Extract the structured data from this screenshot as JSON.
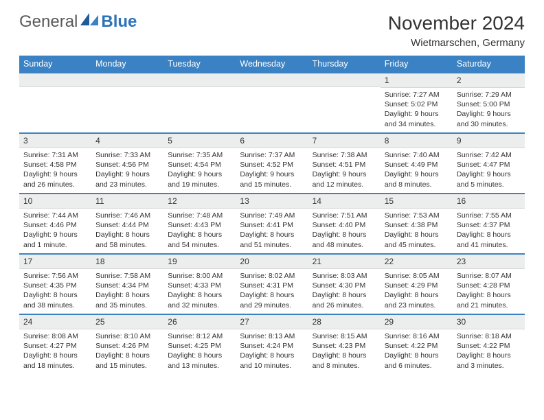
{
  "brand": {
    "part1": "General",
    "part2": "Blue"
  },
  "title": "November 2024",
  "location": "Wietmarschen, Germany",
  "colors": {
    "header_bg": "#3b82c4",
    "header_fg": "#ffffff",
    "row_border": "#3b82c4",
    "daynum_bg": "#eceded",
    "text": "#333333",
    "page_bg": "#ffffff"
  },
  "typography": {
    "body_font": "Arial, Helvetica, sans-serif",
    "month_title_size_pt": 21,
    "location_size_pt": 11,
    "dayheader_size_pt": 9.5,
    "cell_text_size_pt": 8
  },
  "day_headers": [
    "Sunday",
    "Monday",
    "Tuesday",
    "Wednesday",
    "Thursday",
    "Friday",
    "Saturday"
  ],
  "weeks": [
    [
      {
        "n": "",
        "sr": "",
        "ss": "",
        "dl": ""
      },
      {
        "n": "",
        "sr": "",
        "ss": "",
        "dl": ""
      },
      {
        "n": "",
        "sr": "",
        "ss": "",
        "dl": ""
      },
      {
        "n": "",
        "sr": "",
        "ss": "",
        "dl": ""
      },
      {
        "n": "",
        "sr": "",
        "ss": "",
        "dl": ""
      },
      {
        "n": "1",
        "sr": "Sunrise: 7:27 AM",
        "ss": "Sunset: 5:02 PM",
        "dl": "Daylight: 9 hours and 34 minutes."
      },
      {
        "n": "2",
        "sr": "Sunrise: 7:29 AM",
        "ss": "Sunset: 5:00 PM",
        "dl": "Daylight: 9 hours and 30 minutes."
      }
    ],
    [
      {
        "n": "3",
        "sr": "Sunrise: 7:31 AM",
        "ss": "Sunset: 4:58 PM",
        "dl": "Daylight: 9 hours and 26 minutes."
      },
      {
        "n": "4",
        "sr": "Sunrise: 7:33 AM",
        "ss": "Sunset: 4:56 PM",
        "dl": "Daylight: 9 hours and 23 minutes."
      },
      {
        "n": "5",
        "sr": "Sunrise: 7:35 AM",
        "ss": "Sunset: 4:54 PM",
        "dl": "Daylight: 9 hours and 19 minutes."
      },
      {
        "n": "6",
        "sr": "Sunrise: 7:37 AM",
        "ss": "Sunset: 4:52 PM",
        "dl": "Daylight: 9 hours and 15 minutes."
      },
      {
        "n": "7",
        "sr": "Sunrise: 7:38 AM",
        "ss": "Sunset: 4:51 PM",
        "dl": "Daylight: 9 hours and 12 minutes."
      },
      {
        "n": "8",
        "sr": "Sunrise: 7:40 AM",
        "ss": "Sunset: 4:49 PM",
        "dl": "Daylight: 9 hours and 8 minutes."
      },
      {
        "n": "9",
        "sr": "Sunrise: 7:42 AM",
        "ss": "Sunset: 4:47 PM",
        "dl": "Daylight: 9 hours and 5 minutes."
      }
    ],
    [
      {
        "n": "10",
        "sr": "Sunrise: 7:44 AM",
        "ss": "Sunset: 4:46 PM",
        "dl": "Daylight: 9 hours and 1 minute."
      },
      {
        "n": "11",
        "sr": "Sunrise: 7:46 AM",
        "ss": "Sunset: 4:44 PM",
        "dl": "Daylight: 8 hours and 58 minutes."
      },
      {
        "n": "12",
        "sr": "Sunrise: 7:48 AM",
        "ss": "Sunset: 4:43 PM",
        "dl": "Daylight: 8 hours and 54 minutes."
      },
      {
        "n": "13",
        "sr": "Sunrise: 7:49 AM",
        "ss": "Sunset: 4:41 PM",
        "dl": "Daylight: 8 hours and 51 minutes."
      },
      {
        "n": "14",
        "sr": "Sunrise: 7:51 AM",
        "ss": "Sunset: 4:40 PM",
        "dl": "Daylight: 8 hours and 48 minutes."
      },
      {
        "n": "15",
        "sr": "Sunrise: 7:53 AM",
        "ss": "Sunset: 4:38 PM",
        "dl": "Daylight: 8 hours and 45 minutes."
      },
      {
        "n": "16",
        "sr": "Sunrise: 7:55 AM",
        "ss": "Sunset: 4:37 PM",
        "dl": "Daylight: 8 hours and 41 minutes."
      }
    ],
    [
      {
        "n": "17",
        "sr": "Sunrise: 7:56 AM",
        "ss": "Sunset: 4:35 PM",
        "dl": "Daylight: 8 hours and 38 minutes."
      },
      {
        "n": "18",
        "sr": "Sunrise: 7:58 AM",
        "ss": "Sunset: 4:34 PM",
        "dl": "Daylight: 8 hours and 35 minutes."
      },
      {
        "n": "19",
        "sr": "Sunrise: 8:00 AM",
        "ss": "Sunset: 4:33 PM",
        "dl": "Daylight: 8 hours and 32 minutes."
      },
      {
        "n": "20",
        "sr": "Sunrise: 8:02 AM",
        "ss": "Sunset: 4:31 PM",
        "dl": "Daylight: 8 hours and 29 minutes."
      },
      {
        "n": "21",
        "sr": "Sunrise: 8:03 AM",
        "ss": "Sunset: 4:30 PM",
        "dl": "Daylight: 8 hours and 26 minutes."
      },
      {
        "n": "22",
        "sr": "Sunrise: 8:05 AM",
        "ss": "Sunset: 4:29 PM",
        "dl": "Daylight: 8 hours and 23 minutes."
      },
      {
        "n": "23",
        "sr": "Sunrise: 8:07 AM",
        "ss": "Sunset: 4:28 PM",
        "dl": "Daylight: 8 hours and 21 minutes."
      }
    ],
    [
      {
        "n": "24",
        "sr": "Sunrise: 8:08 AM",
        "ss": "Sunset: 4:27 PM",
        "dl": "Daylight: 8 hours and 18 minutes."
      },
      {
        "n": "25",
        "sr": "Sunrise: 8:10 AM",
        "ss": "Sunset: 4:26 PM",
        "dl": "Daylight: 8 hours and 15 minutes."
      },
      {
        "n": "26",
        "sr": "Sunrise: 8:12 AM",
        "ss": "Sunset: 4:25 PM",
        "dl": "Daylight: 8 hours and 13 minutes."
      },
      {
        "n": "27",
        "sr": "Sunrise: 8:13 AM",
        "ss": "Sunset: 4:24 PM",
        "dl": "Daylight: 8 hours and 10 minutes."
      },
      {
        "n": "28",
        "sr": "Sunrise: 8:15 AM",
        "ss": "Sunset: 4:23 PM",
        "dl": "Daylight: 8 hours and 8 minutes."
      },
      {
        "n": "29",
        "sr": "Sunrise: 8:16 AM",
        "ss": "Sunset: 4:22 PM",
        "dl": "Daylight: 8 hours and 6 minutes."
      },
      {
        "n": "30",
        "sr": "Sunrise: 8:18 AM",
        "ss": "Sunset: 4:22 PM",
        "dl": "Daylight: 8 hours and 3 minutes."
      }
    ]
  ]
}
